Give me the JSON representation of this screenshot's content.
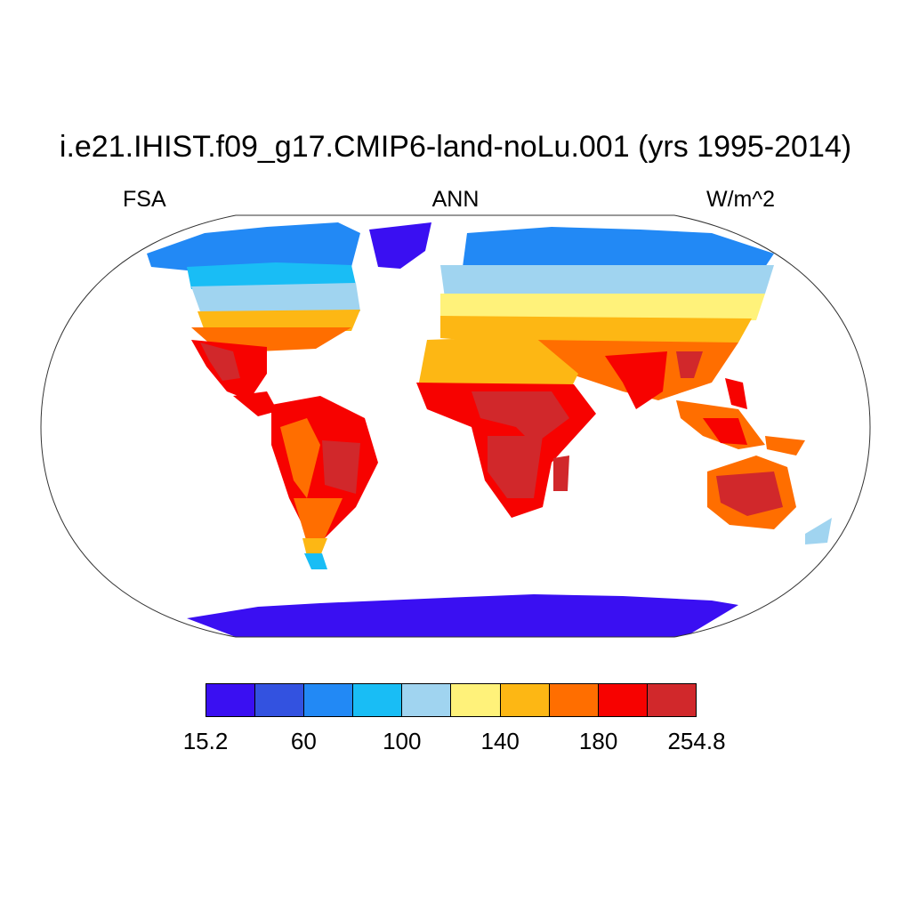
{
  "title": "i.e21.IHIST.f09_g17.CMIP6-land-noLu.001 (yrs 1995-2014)",
  "left_label": "FSA",
  "center_label": "ANN",
  "right_label": "W/m^2",
  "colorbar": {
    "colors": [
      "#3a0ff2",
      "#3352e0",
      "#2289f5",
      "#19bdf5",
      "#a0d4f0",
      "#fff27a",
      "#fdb714",
      "#ff6e00",
      "#f70200",
      "#d1282b"
    ],
    "tick_labels": [
      {
        "text": "15.2",
        "index": 0
      },
      {
        "text": "60",
        "index": 2
      },
      {
        "text": "100",
        "index": 4
      },
      {
        "text": "140",
        "index": 6
      },
      {
        "text": "180",
        "index": 8
      },
      {
        "text": "254.8",
        "index": 10
      }
    ]
  }
}
